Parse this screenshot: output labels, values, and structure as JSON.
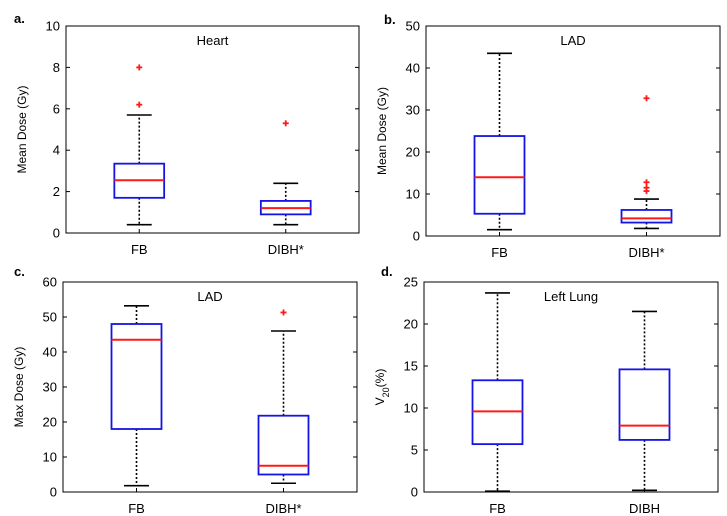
{
  "colors": {
    "box": "#1414e6",
    "median": "#ff1a1a",
    "outlier": "#ff1a1a",
    "whisker": "#000000",
    "axes": "#000000"
  },
  "chart_data": [
    {
      "type": "box",
      "panel_label": "a.",
      "title": "Heart",
      "ylabel": "Mean Dose (Gy)",
      "ylabel_sub": "",
      "ylabel_after": "",
      "ylim": [
        0,
        10
      ],
      "yticks": [
        "0",
        "2",
        "4",
        "6",
        "8",
        "10"
      ],
      "categories": [
        "FB",
        "DIBH*"
      ],
      "boxes": [
        {
          "category": "FB",
          "min": 0.4,
          "q1": 1.7,
          "median": 2.55,
          "q3": 3.35,
          "max": 5.7,
          "outliers": [
            8.0,
            6.2
          ]
        },
        {
          "category": "DIBH*",
          "min": 0.4,
          "q1": 0.9,
          "median": 1.2,
          "q3": 1.55,
          "max": 2.4,
          "outliers": [
            5.3
          ]
        }
      ]
    },
    {
      "type": "box",
      "panel_label": "b.",
      "title": "LAD",
      "ylabel": "Mean Dose (Gy)",
      "ylabel_sub": "",
      "ylabel_after": "",
      "ylim": [
        0,
        50
      ],
      "yticks": [
        "0",
        "10",
        "20",
        "30",
        "40",
        "50"
      ],
      "categories": [
        "FB",
        "DIBH*"
      ],
      "boxes": [
        {
          "category": "FB",
          "min": 1.5,
          "q1": 5.3,
          "median": 14.0,
          "q3": 23.8,
          "max": 43.5,
          "outliers": []
        },
        {
          "category": "DIBH*",
          "min": 1.8,
          "q1": 3.2,
          "median": 4.2,
          "q3": 6.2,
          "max": 8.8,
          "outliers": [
            32.8,
            12.8,
            11.5,
            10.7
          ]
        }
      ]
    },
    {
      "type": "box",
      "panel_label": "c.",
      "title": "LAD",
      "ylabel": "Max Dose (Gy)",
      "ylabel_sub": "",
      "ylabel_after": "",
      "ylim": [
        0,
        60
      ],
      "yticks": [
        "0",
        "10",
        "20",
        "30",
        "40",
        "50",
        "60"
      ],
      "categories": [
        "FB",
        "DIBH*"
      ],
      "boxes": [
        {
          "category": "FB",
          "min": 1.8,
          "q1": 18.0,
          "median": 43.5,
          "q3": 48.0,
          "max": 53.2,
          "outliers": []
        },
        {
          "category": "DIBH*",
          "min": 2.5,
          "q1": 5.0,
          "median": 7.5,
          "q3": 21.8,
          "max": 46.0,
          "outliers": [
            51.3
          ]
        }
      ]
    },
    {
      "type": "box",
      "panel_label": "d.",
      "title": "Left Lung",
      "ylabel": "V",
      "ylabel_sub": "20",
      "ylabel_after": "(%)",
      "ylim": [
        0,
        25
      ],
      "yticks": [
        "0",
        "5",
        "10",
        "15",
        "20",
        "25"
      ],
      "categories": [
        "FB",
        "DIBH"
      ],
      "boxes": [
        {
          "category": "FB",
          "min": 0.1,
          "q1": 5.7,
          "median": 9.6,
          "q3": 13.3,
          "max": 23.7,
          "outliers": []
        },
        {
          "category": "DIBH",
          "min": 0.2,
          "q1": 6.2,
          "median": 7.9,
          "q3": 14.6,
          "max": 21.5,
          "outliers": []
        }
      ]
    }
  ]
}
